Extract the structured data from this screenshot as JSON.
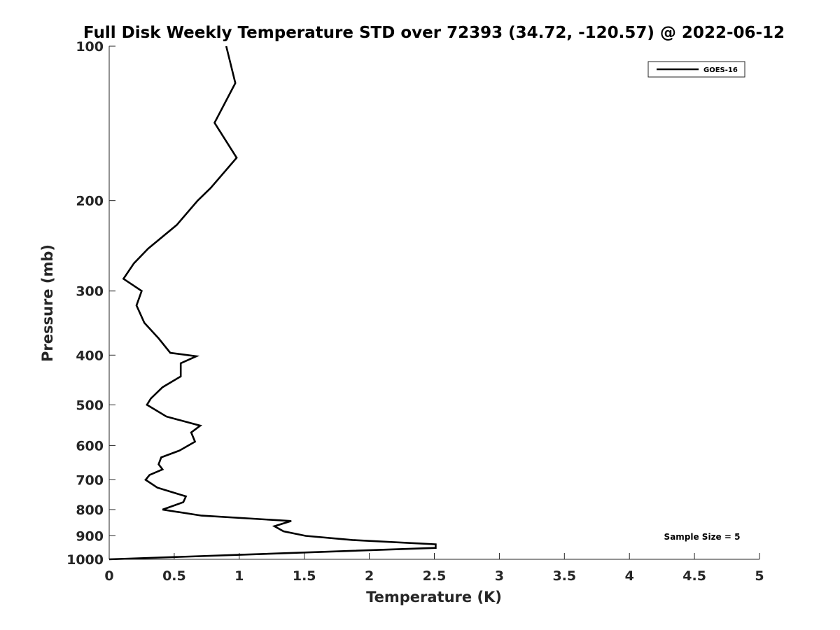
{
  "chart_data": {
    "type": "line",
    "title": "Full Disk Weekly Temperature STD over 72393 (34.72, -120.57) @ 2022-06-12",
    "xlabel": "Temperature (K)",
    "ylabel": "Pressure (mb)",
    "xlim": [
      0,
      5
    ],
    "ylim": [
      100,
      1000
    ],
    "yscale": "log",
    "y_reversed": true,
    "x_ticks": [
      0,
      0.5,
      1,
      1.5,
      2,
      2.5,
      3,
      3.5,
      4,
      4.5,
      5
    ],
    "x_tick_labels": [
      "0",
      "0.5",
      "1",
      "1.5",
      "2",
      "2.5",
      "3",
      "3.5",
      "4",
      "4.5",
      "5"
    ],
    "y_ticks": [
      100,
      200,
      300,
      400,
      500,
      600,
      700,
      800,
      900,
      1000
    ],
    "y_tick_labels": [
      "100",
      "200",
      "300",
      "400",
      "500",
      "600",
      "700",
      "800",
      "900",
      "1000"
    ],
    "grid": false,
    "legend_position": "top-right",
    "annotation": "Sample Size = 5",
    "series": [
      {
        "name": "GOES-16",
        "color": "#000000",
        "points": [
          [
            0.9,
            100
          ],
          [
            0.97,
            118
          ],
          [
            0.81,
            141
          ],
          [
            0.98,
            165
          ],
          [
            0.78,
            189
          ],
          [
            0.68,
            200
          ],
          [
            0.52,
            223
          ],
          [
            0.3,
            248
          ],
          [
            0.19,
            265
          ],
          [
            0.11,
            284
          ],
          [
            0.25,
            300
          ],
          [
            0.21,
            320
          ],
          [
            0.27,
            346
          ],
          [
            0.38,
            371
          ],
          [
            0.47,
            396
          ],
          [
            0.67,
            402
          ],
          [
            0.55,
            415
          ],
          [
            0.55,
            440
          ],
          [
            0.41,
            462
          ],
          [
            0.32,
            486
          ],
          [
            0.29,
            500
          ],
          [
            0.44,
            527
          ],
          [
            0.7,
            549
          ],
          [
            0.63,
            566
          ],
          [
            0.66,
            590
          ],
          [
            0.54,
            614
          ],
          [
            0.4,
            633
          ],
          [
            0.38,
            653
          ],
          [
            0.41,
            668
          ],
          [
            0.31,
            685
          ],
          [
            0.28,
            700
          ],
          [
            0.37,
            725
          ],
          [
            0.59,
            754
          ],
          [
            0.57,
            774
          ],
          [
            0.41,
            800
          ],
          [
            0.71,
            822
          ],
          [
            1.4,
            842
          ],
          [
            1.27,
            862
          ],
          [
            1.34,
            882
          ],
          [
            1.51,
            900
          ],
          [
            1.87,
            917
          ],
          [
            2.51,
            935
          ],
          [
            2.51,
            950
          ],
          [
            1.0,
            980
          ],
          [
            0.0,
            1000
          ]
        ]
      }
    ]
  }
}
